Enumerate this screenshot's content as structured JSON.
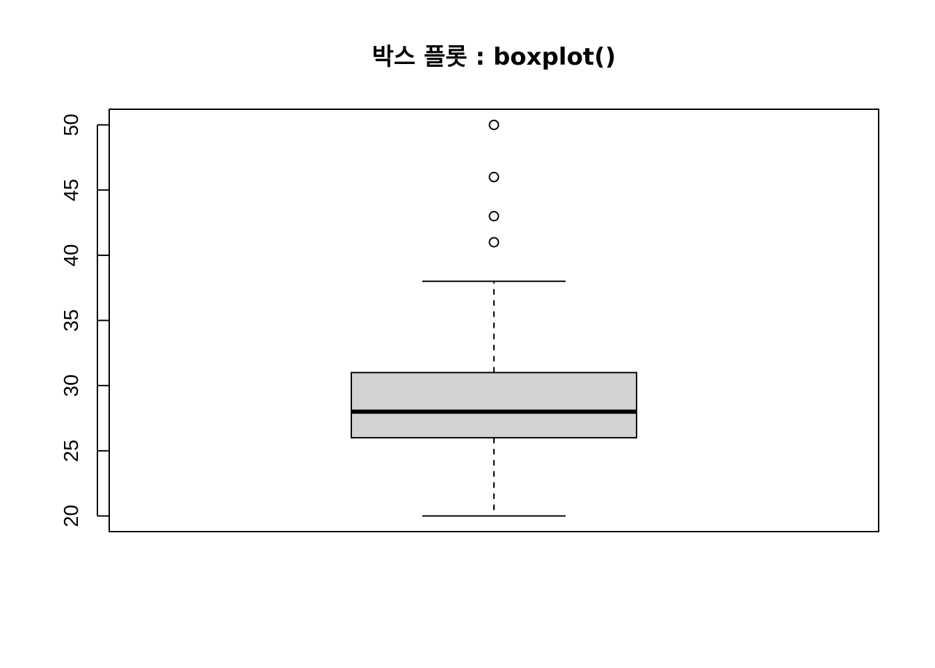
{
  "chart_data": {
    "type": "boxplot",
    "title": "박스 플롯 : boxplot()",
    "xlabel": "",
    "ylabel": "",
    "ylim": [
      18.8,
      51.2
    ],
    "yticks": [
      20,
      25,
      30,
      35,
      40,
      45,
      50
    ],
    "ytick_labels": [
      "20",
      "25",
      "30",
      "35",
      "40",
      "45",
      "50"
    ],
    "box": {
      "whisker_low": 20,
      "q1": 26,
      "median": 28,
      "q3": 31,
      "whisker_high": 38,
      "outliers": [
        41,
        43,
        46,
        50
      ]
    },
    "colors": {
      "box_fill": "#d3d3d3",
      "line": "#000000"
    }
  }
}
